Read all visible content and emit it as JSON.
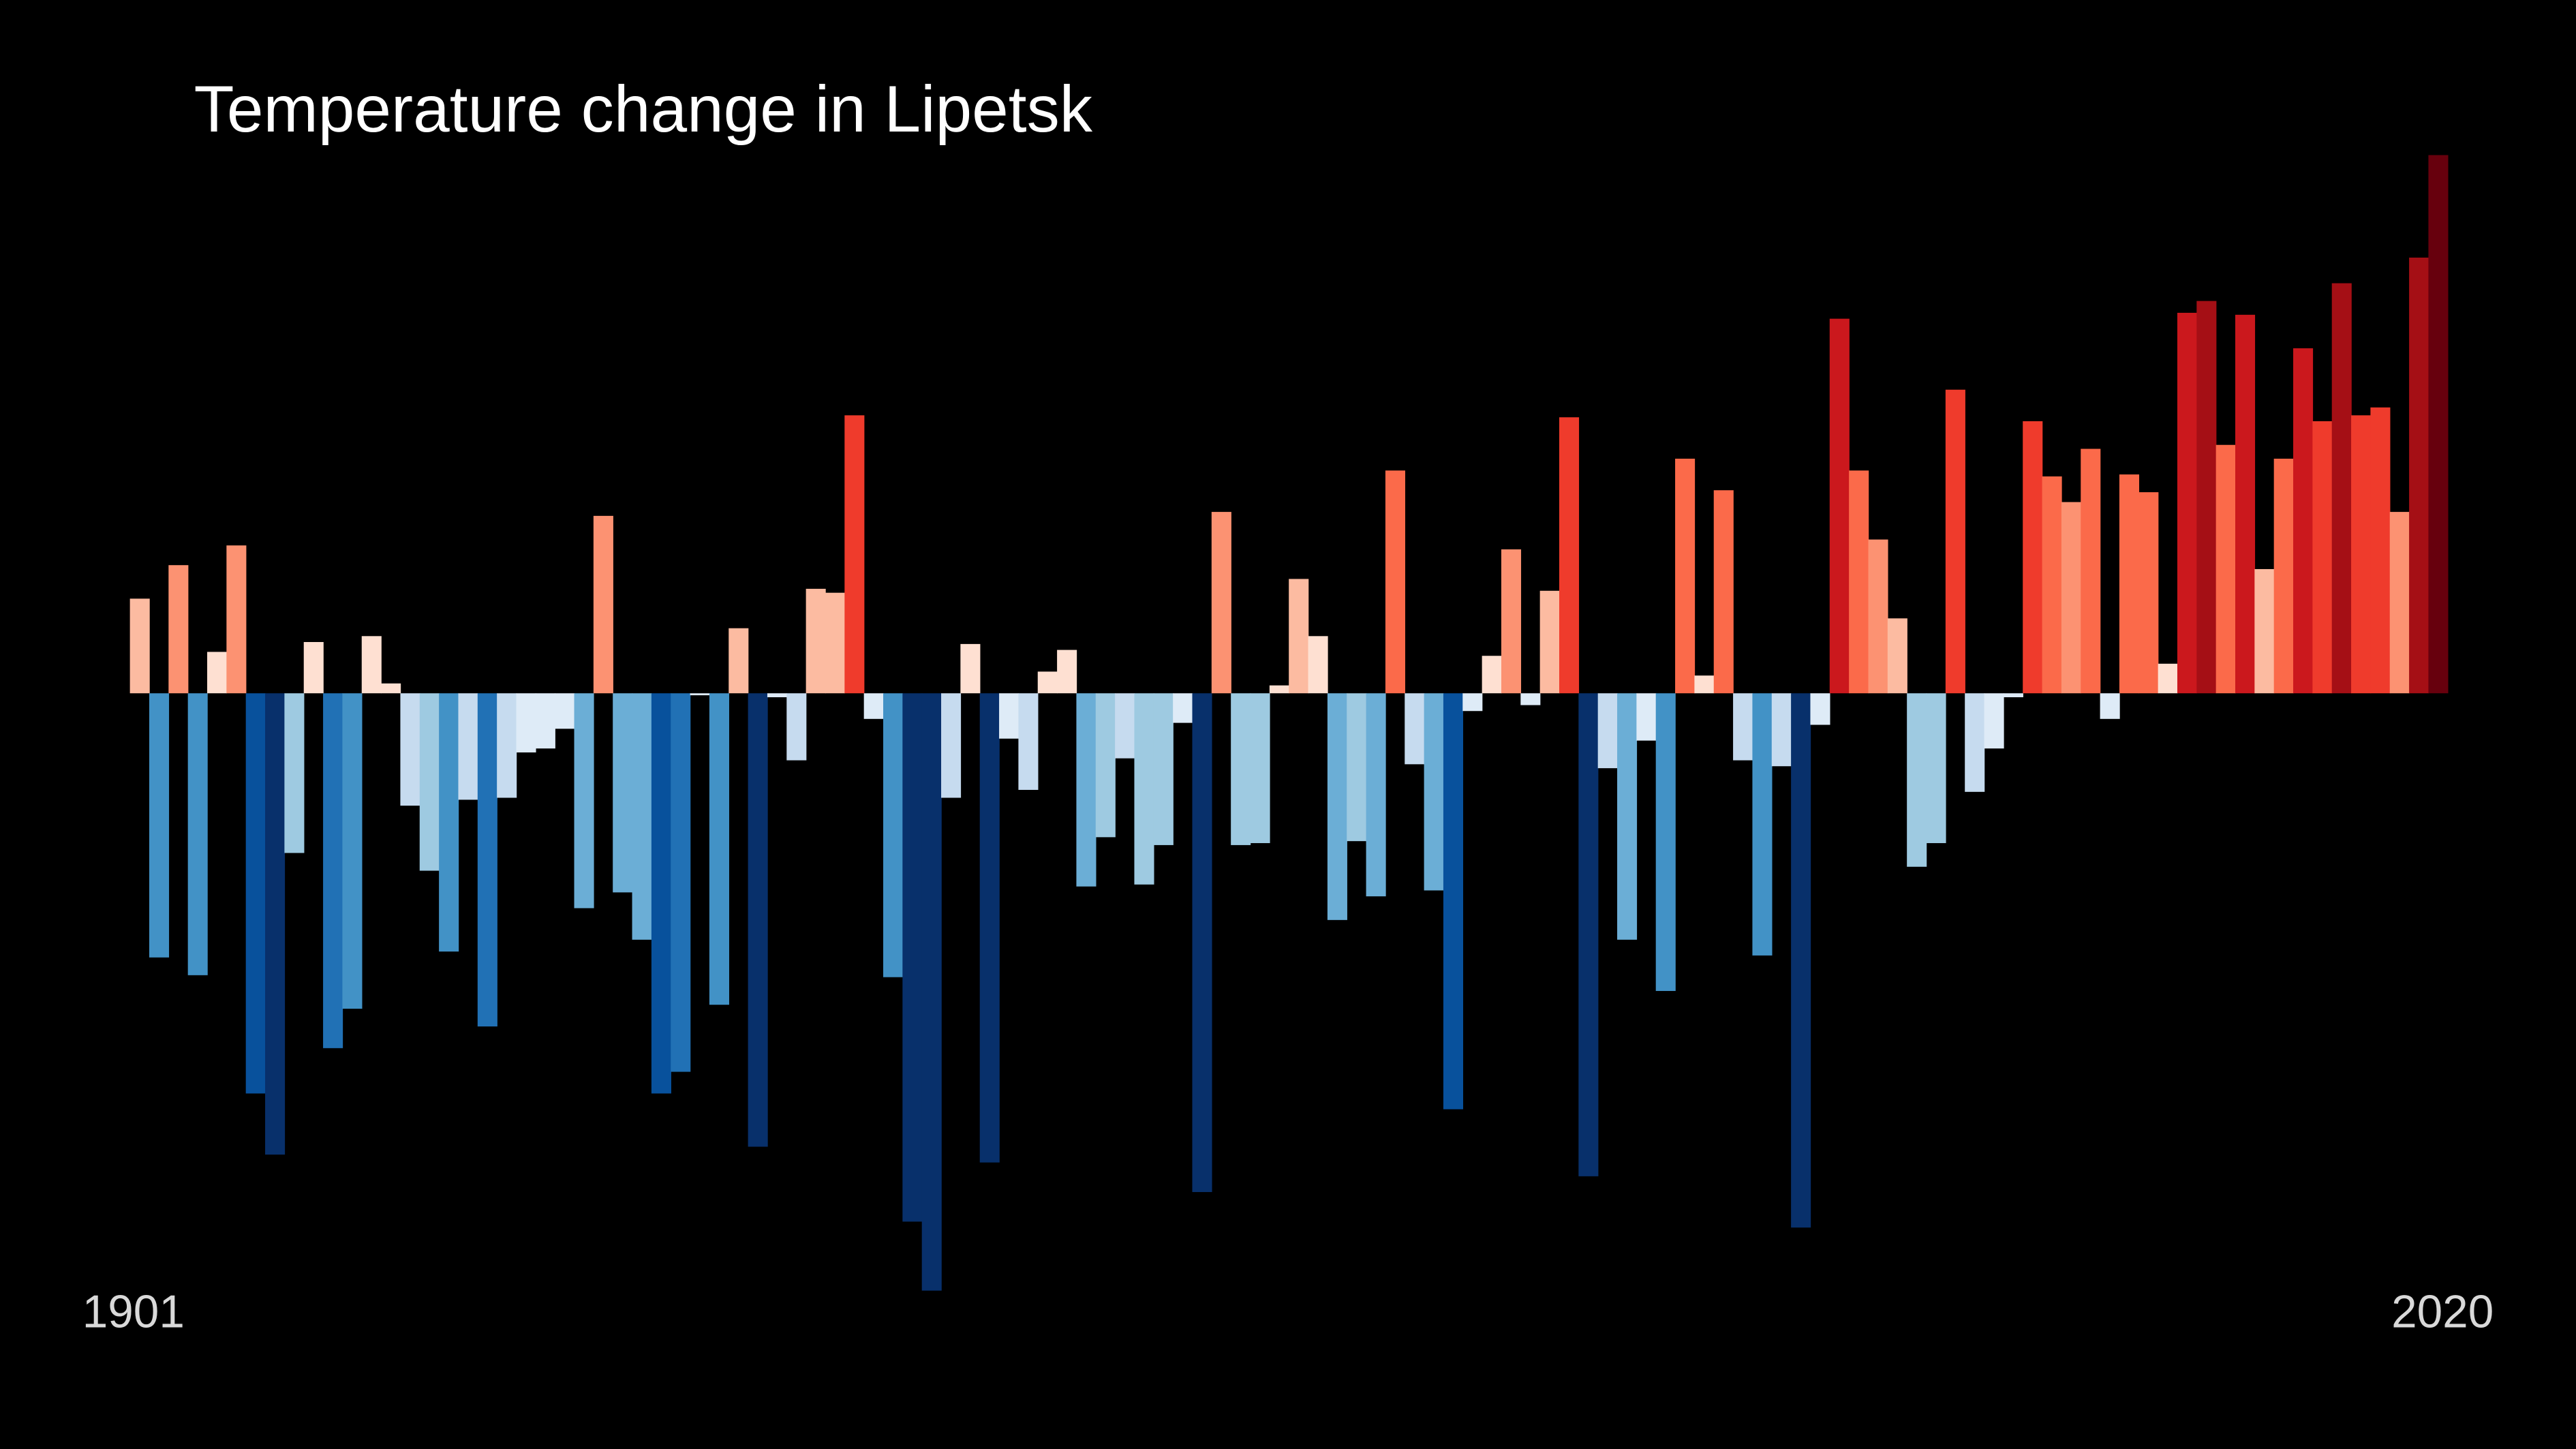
{
  "chart_data": {
    "type": "bar",
    "title": "Temperature change in Lipetsk",
    "xlim": [
      1901,
      2020
    ],
    "xticks": [
      1901,
      2020
    ],
    "ylim": [
      -3.6,
      3.5
    ],
    "values": [
      0.48,
      -1.34,
      0.65,
      -1.43,
      0.21,
      0.75,
      -2.03,
      -2.34,
      -0.81,
      0.26,
      -1.8,
      -1.6,
      0.29,
      0.05,
      -0.57,
      -0.9,
      -1.31,
      -0.54,
      -1.69,
      -0.53,
      -0.3,
      -0.28,
      -0.18,
      -1.09,
      0.9,
      -1.01,
      -1.25,
      -2.03,
      -1.92,
      -0.01,
      -1.58,
      0.33,
      -2.3,
      -0.02,
      -0.34,
      0.53,
      0.51,
      1.41,
      -0.13,
      -1.44,
      -2.68,
      -3.03,
      -0.53,
      0.25,
      -2.38,
      -0.23,
      -0.49,
      0.11,
      0.22,
      -0.98,
      -0.73,
      -0.33,
      -0.97,
      -0.77,
      -0.15,
      -2.53,
      0.92,
      -0.77,
      -0.76,
      0.04,
      0.58,
      0.29,
      -1.15,
      -0.75,
      -1.03,
      1.13,
      -0.36,
      -1.0,
      -2.11,
      -0.09,
      0.19,
      0.73,
      -0.06,
      0.52,
      1.4,
      -2.45,
      -0.38,
      -1.25,
      -0.24,
      -1.51,
      1.19,
      0.09,
      1.03,
      -0.34,
      -1.33,
      -0.37,
      -2.71,
      -0.16,
      1.9,
      1.13,
      0.78,
      0.38,
      -0.88,
      -0.76,
      1.54,
      -0.5,
      -0.28,
      -0.02,
      1.38,
      1.1,
      0.97,
      1.24,
      -0.13,
      1.11,
      1.02,
      0.15,
      1.93,
      1.99,
      1.26,
      1.92,
      0.63,
      1.19,
      1.75,
      1.38,
      2.08,
      1.41,
      1.45,
      0.92,
      2.21,
      2.73
    ],
    "colormap": [
      "#08306b",
      "#08519c",
      "#2171b5",
      "#4292c6",
      "#6baed6",
      "#9ecae1",
      "#c6dbef",
      "#deebf7",
      "#fee0d2",
      "#fcbba1",
      "#fc9272",
      "#fb6a4a",
      "#ef3b2c",
      "#cb181d",
      "#a50f15",
      "#67000d"
    ],
    "clim": [
      -2.6,
      2.6
    ],
    "background": "#000000",
    "text_color": "#ffffff"
  }
}
